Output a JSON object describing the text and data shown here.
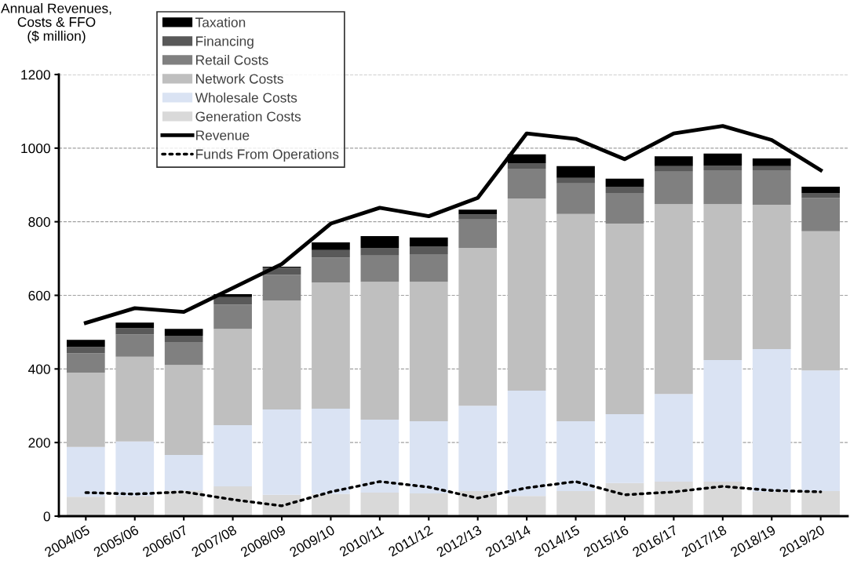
{
  "chart_data": {
    "type": "bar",
    "stacked": true,
    "ylabel": "Annual Revenues,\nCosts & FFO\n($ million)",
    "categories": [
      "2004/05",
      "2005/06",
      "2006/07",
      "2007/08",
      "2008/09",
      "2009/10",
      "2010/11",
      "2011/12",
      "2012/13",
      "2013/14",
      "2014/15",
      "2015/16",
      "2016/17",
      "2017/18",
      "2018/19",
      "2019/20"
    ],
    "ylim": [
      0,
      1200
    ],
    "yticks": [
      0,
      200,
      400,
      600,
      800,
      1000,
      1200
    ],
    "grid": "y",
    "legend": "top left",
    "series": [
      {
        "name": "Generation Costs",
        "color": "#d9d9d9",
        "values": [
          53,
          55,
          70,
          81,
          58,
          60,
          64,
          62,
          68,
          55,
          68,
          90,
          94,
          94,
          66,
          68
        ]
      },
      {
        "name": "Wholesale Costs",
        "color": "#dae3f3",
        "values": [
          135,
          148,
          96,
          166,
          232,
          232,
          198,
          196,
          232,
          286,
          190,
          187,
          238,
          330,
          388,
          328
        ]
      },
      {
        "name": "Network Costs",
        "color": "#bfbfbf",
        "values": [
          202,
          230,
          245,
          262,
          296,
          343,
          375,
          379,
          429,
          522,
          563,
          518,
          516,
          424,
          392,
          378
        ]
      },
      {
        "name": "Retail Costs",
        "color": "#808080",
        "values": [
          53,
          61,
          62,
          66,
          70,
          68,
          71,
          75,
          77,
          81,
          83,
          83,
          88,
          92,
          94,
          91
        ]
      },
      {
        "name": "Financing",
        "color": "#595959",
        "values": [
          17,
          17,
          17,
          20,
          19,
          20,
          21,
          21,
          14,
          15,
          15,
          17,
          15,
          13,
          11,
          13
        ]
      },
      {
        "name": "Taxation",
        "color": "#000000",
        "values": [
          19,
          15,
          19,
          8,
          3,
          21,
          32,
          24,
          13,
          24,
          32,
          22,
          27,
          32,
          21,
          17
        ]
      },
      {
        "name": "Revenue",
        "type": "line",
        "line_style": "solid",
        "color": "#000000",
        "values": [
          525,
          565,
          555,
          620,
          685,
          795,
          838,
          815,
          865,
          1040,
          1025,
          970,
          1040,
          1060,
          1022,
          940
        ]
      },
      {
        "name": "Funds From Operations",
        "type": "line",
        "line_style": "dotted",
        "color": "#000000",
        "values": [
          64,
          60,
          66,
          45,
          28,
          66,
          94,
          79,
          49,
          77,
          94,
          58,
          66,
          81,
          70,
          66
        ]
      }
    ]
  }
}
